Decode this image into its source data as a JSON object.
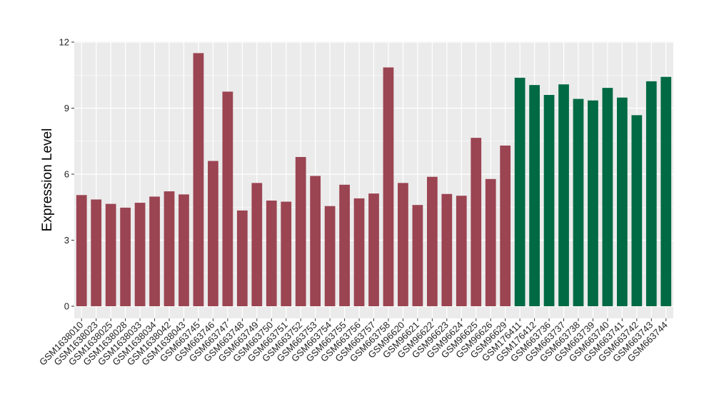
{
  "chart_data": {
    "type": "bar",
    "title": "",
    "xlabel": "",
    "ylabel": "Expression Level",
    "ylim": [
      0,
      12
    ],
    "yticks": [
      0,
      3,
      6,
      9,
      12
    ],
    "grid": true,
    "legend": "none",
    "colors": {
      "group1": "#9b4452",
      "group2": "#006a44",
      "panel": "#ebebeb",
      "grid": "#ffffff"
    },
    "categories": [
      "GSM1638010",
      "GSM1638023",
      "GSM1638025",
      "GSM1638028",
      "GSM1638033",
      "GSM1638034",
      "GSM1638042",
      "GSM1638043",
      "GSM663745",
      "GSM663746",
      "GSM663747",
      "GSM663748",
      "GSM663749",
      "GSM663750",
      "GSM663751",
      "GSM663752",
      "GSM663753",
      "GSM663754",
      "GSM663755",
      "GSM663756",
      "GSM663757",
      "GSM663758",
      "GSM96620",
      "GSM96621",
      "GSM96622",
      "GSM96623",
      "GSM96624",
      "GSM96625",
      "GSM96626",
      "GSM96629",
      "GSM176411",
      "GSM176412",
      "GSM663736",
      "GSM663737",
      "GSM663738",
      "GSM663739",
      "GSM663740",
      "GSM663741",
      "GSM663742",
      "GSM663743",
      "GSM663744"
    ],
    "values": [
      5.05,
      4.85,
      4.65,
      4.48,
      4.7,
      4.98,
      5.22,
      5.08,
      11.5,
      6.6,
      9.75,
      4.35,
      5.6,
      4.8,
      4.75,
      6.78,
      5.92,
      4.55,
      5.52,
      4.9,
      5.12,
      10.85,
      5.6,
      4.6,
      5.88,
      5.1,
      5.02,
      7.65,
      5.78,
      7.3,
      10.38,
      10.05,
      9.6,
      10.08,
      9.42,
      9.35,
      9.92,
      9.48,
      8.68,
      10.22,
      10.42
    ],
    "group": [
      1,
      1,
      1,
      1,
      1,
      1,
      1,
      1,
      1,
      1,
      1,
      1,
      1,
      1,
      1,
      1,
      1,
      1,
      1,
      1,
      1,
      1,
      1,
      1,
      1,
      1,
      1,
      1,
      1,
      1,
      2,
      2,
      2,
      2,
      2,
      2,
      2,
      2,
      2,
      2,
      2
    ]
  }
}
